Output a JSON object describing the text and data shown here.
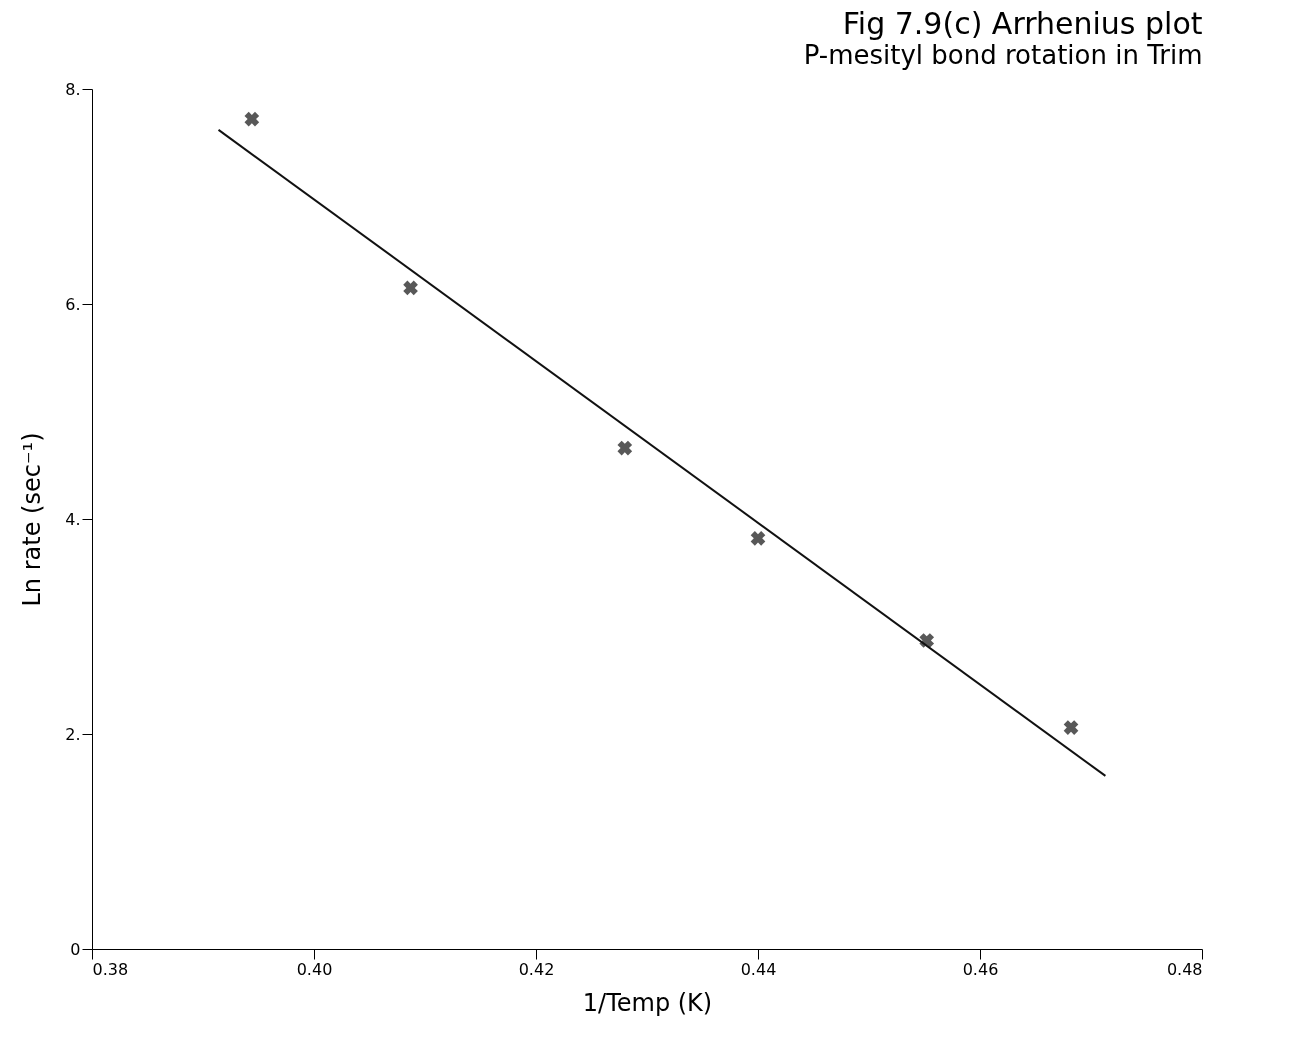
{
  "chart_data": {
    "type": "scatter",
    "title": "Fig 7.9(c)   Arrhenius plot",
    "subtitle": "P-mesityl bond rotation in Trim",
    "xlabel": "1/Temp (K)",
    "ylabel": "Ln rate (sec⁻¹)",
    "xlim": [
      0.38,
      0.48
    ],
    "xticks": [
      0.38,
      {
        "value": 0.4,
        "label": "0.40"
      },
      0.42,
      0.44,
      0.46,
      0.48
    ],
    "ylim": [
      0,
      8
    ],
    "yticks": [
      0,
      {
        "value": 2,
        "label": "2."
      },
      {
        "value": 4,
        "label": "4."
      },
      {
        "value": 6,
        "label": "6."
      },
      {
        "value": 8,
        "label": "8."
      }
    ],
    "grid": false,
    "series": [
      {
        "marker": "cross",
        "color": "#111111",
        "x": [
          0.3944,
          0.4087,
          0.428,
          0.44,
          0.4552,
          0.4682
        ],
        "values": [
          7.72,
          6.15,
          4.66,
          3.82,
          2.87,
          2.06
        ]
      },
      {
        "type": "line",
        "marker": "none",
        "color": "#111111",
        "x": [
          0.3914,
          0.4713
        ],
        "values": [
          7.62,
          1.61
        ]
      }
    ]
  }
}
